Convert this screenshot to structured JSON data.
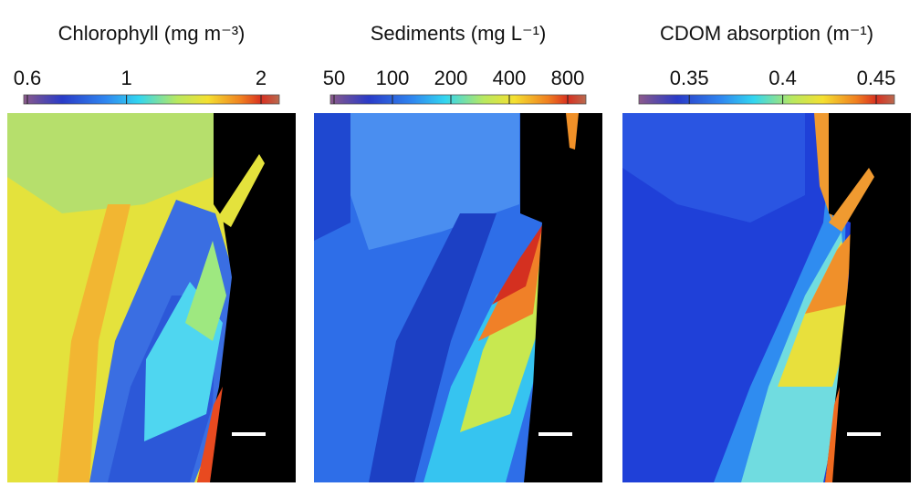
{
  "panels": [
    {
      "title": "Chlorophyll (mg m⁻³)",
      "colorbar": {
        "scale": "log",
        "lim": [
          0.6,
          2
        ],
        "ticks": [
          0.6,
          1,
          2
        ]
      }
    },
    {
      "title": "Sediments (mg L⁻¹)",
      "colorbar": {
        "scale": "log",
        "lim": [
          50,
          800
        ],
        "ticks": [
          50,
          100,
          200,
          400,
          800
        ]
      }
    },
    {
      "title": "CDOM absorption (m⁻¹)",
      "colorbar": {
        "scale": "linear",
        "lim": [
          0.325,
          0.45
        ],
        "ticks": [
          0.35,
          0.4,
          0.45
        ]
      }
    }
  ]
}
